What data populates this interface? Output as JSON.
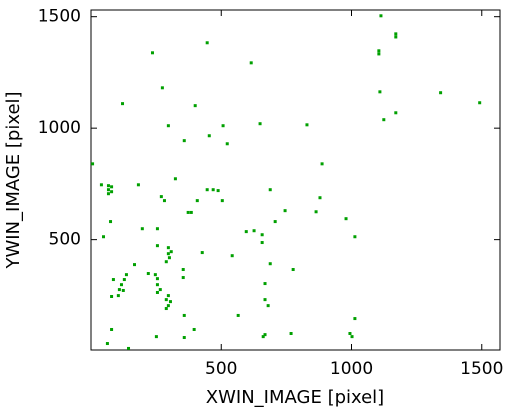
{
  "chart_data": {
    "type": "scatter",
    "x_label": "XWIN_IMAGE [pixel]",
    "y_label": "YWIN_IMAGE [pixel]",
    "xlim": [
      0,
      1570
    ],
    "ylim": [
      5,
      1530
    ],
    "xticks": [
      500,
      1000,
      1500
    ],
    "yticks": [
      500,
      1000,
      1500
    ],
    "color": "#00a000",
    "x": [
      1113,
      1105,
      1105,
      1170,
      1170,
      446,
      236,
      615,
      274,
      121,
      1109,
      1342,
      1492,
      400,
      1124,
      1170,
      649,
      829,
      297,
      507,
      454,
      523,
      358,
      6,
      887,
      40,
      67,
      67,
      67,
      79,
      79,
      182,
      324,
      446,
      469,
      488,
      408,
      504,
      270,
      282,
      373,
      385,
      688,
      745,
      879,
      864,
      707,
      75,
      197,
      255,
      979,
      1013,
      48,
      596,
      626,
      657,
      657,
      255,
      297,
      297,
      308,
      301,
      289,
      427,
      542,
      688,
      776,
      354,
      167,
      247,
      220,
      136,
      128,
      117,
      109,
      124,
      105,
      86,
      255,
      255,
      266,
      255,
      354,
      668,
      297,
      289,
      305,
      297,
      289,
      79,
      668,
      358,
      680,
      565,
      1013,
      396,
      668,
      661,
      79,
      251,
      358,
      768,
      994,
      1002,
      63,
      144
    ],
    "y": [
      1504,
      1347,
      1333,
      1423,
      1409,
      1383,
      1338,
      1293,
      1181,
      1110,
      1163,
      1159,
      1114,
      1101,
      1038,
      1069,
      1020,
      1015,
      1011,
      1011,
      966,
      930,
      944,
      840,
      840,
      746,
      742,
      724,
      706,
      737,
      715,
      746,
      773,
      724,
      724,
      720,
      675,
      675,
      693,
      675,
      622,
      622,
      724,
      630,
      688,
      625,
      581,
      581,
      549,
      549,
      594,
      513,
      513,
      536,
      540,
      522,
      487,
      473,
      464,
      437,
      446,
      419,
      401,
      442,
      428,
      392,
      366,
      366,
      388,
      343,
      348,
      343,
      321,
      298,
      276,
      272,
      249,
      321,
      325,
      298,
      276,
      263,
      330,
      303,
      249,
      231,
      222,
      204,
      191,
      245,
      231,
      160,
      204,
      160,
      146,
      97,
      74,
      65,
      97,
      65,
      61,
      79,
      79,
      65,
      34,
      12
    ]
  }
}
